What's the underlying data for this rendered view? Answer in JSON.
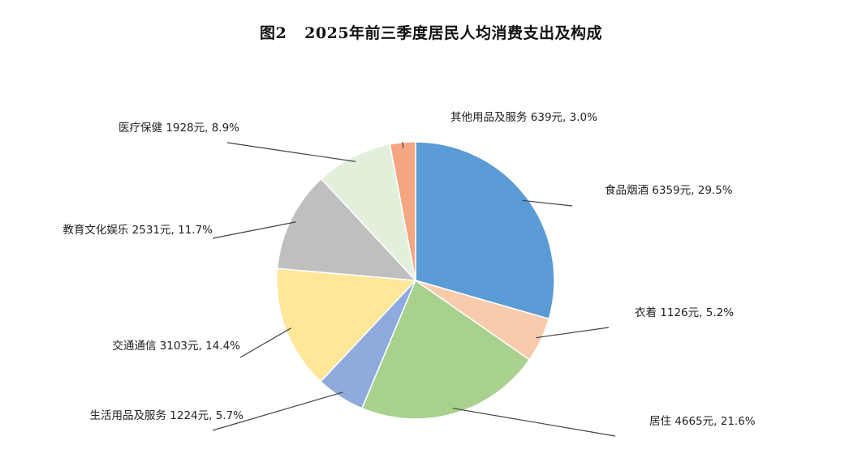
{
  "figure_number": "图2",
  "chart_data": {
    "type": "pie",
    "title": "2025年前三季度居民人均消费支出及构成",
    "unit": "元",
    "slices": [
      {
        "name": "食品烟酒",
        "value": 6359,
        "percent": 29.5,
        "label": "食品烟酒 6359元, 29.5%",
        "color": "#5B9BD5"
      },
      {
        "name": "衣着",
        "value": 1126,
        "percent": 5.2,
        "label": "衣着 1126元, 5.2%",
        "color": "#F8CBAD"
      },
      {
        "name": "居住",
        "value": 4665,
        "percent": 21.6,
        "label": "居住 4665元, 21.6%",
        "color": "#A9D18E"
      },
      {
        "name": "生活用品及服务",
        "value": 1224,
        "percent": 5.7,
        "label": "生活用品及服务 1224元, 5.7%",
        "color": "#8FAADC"
      },
      {
        "name": "交通通信",
        "value": 3103,
        "percent": 14.4,
        "label": "交通通信 3103元, 14.4%",
        "color": "#FFE699"
      },
      {
        "name": "教育文化娱乐",
        "value": 2531,
        "percent": 11.7,
        "label": "教育文化娱乐 2531元, 11.7%",
        "color": "#BFBFBF"
      },
      {
        "name": "医疗保健",
        "value": 1928,
        "percent": 8.9,
        "label": "医疗保健 1928元, 8.9%",
        "color": "#E2EFDA"
      },
      {
        "name": "其他用品及服务",
        "value": 639,
        "percent": 3.0,
        "label": "其他用品及服务 639元, 3.0%",
        "color": "#F4A582"
      }
    ]
  }
}
